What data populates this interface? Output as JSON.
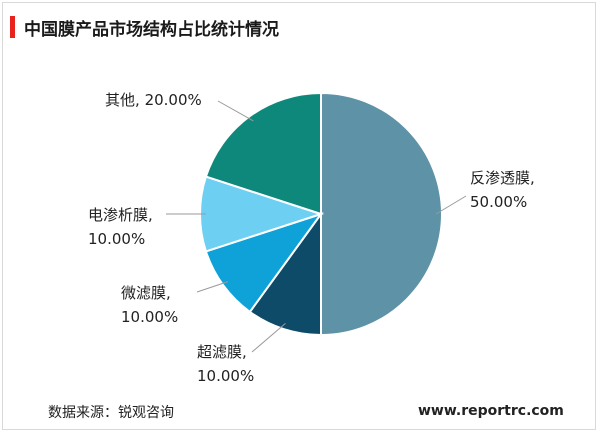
{
  "title": "中国膜产品市场结构占比统计情况",
  "source": "数据来源：锐观咨询",
  "website": "www.reportrc.com",
  "chart_data": {
    "type": "pie",
    "title": "中国膜产品市场结构占比统计情况",
    "slices": [
      {
        "label": "反渗透膜",
        "value": 50.0,
        "display": "50.00%",
        "color": "#5e92a6"
      },
      {
        "label": "超滤膜",
        "value": 10.0,
        "display": "10.00%",
        "color": "#0d4b68"
      },
      {
        "label": "微滤膜",
        "value": 10.0,
        "display": "10.00%",
        "color": "#0ea2d8"
      },
      {
        "label": "电渗析膜",
        "value": 10.0,
        "display": "10.00%",
        "color": "#6dd0f2"
      },
      {
        "label": "其他",
        "value": 20.0,
        "display": "20.00%",
        "color": "#0f887c"
      }
    ]
  }
}
